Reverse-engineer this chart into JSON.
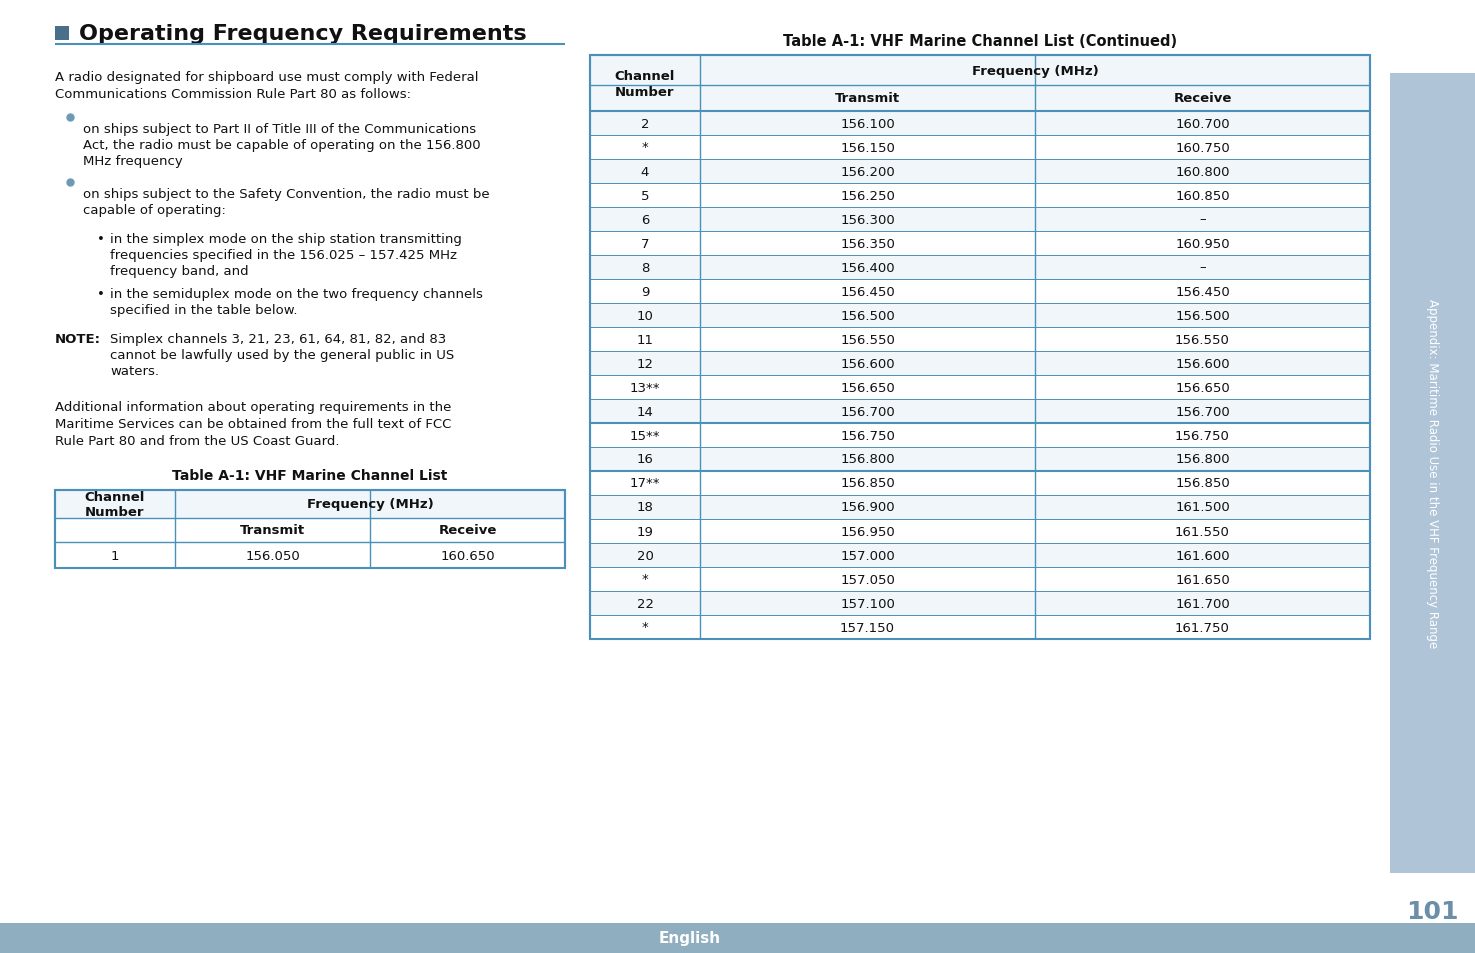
{
  "page_bg": "#ffffff",
  "sidebar_bg": "#b0c4d8",
  "sidebar_text": "Appendix: Maritime Radio Use in the VHF Frequency Range",
  "sidebar_text_color": "#ffffff",
  "page_num": "101",
  "page_num_color": "#6b8fa8",
  "footer_bg": "#8fafc0",
  "footer_text": "English",
  "footer_text_color": "#ffffff",
  "heading_icon_color": "#4a6f8a",
  "heading_text": "Operating Frequency Requirements",
  "heading_line_color": "#4a90b8",
  "body_text_left": "A radio designated for shipboard use must comply with Federal\nCommunications Commission Rule Part 80 as follows:",
  "bullet_color": "#6a9ab5",
  "bullet1": "on ships subject to Part II of Title III of the Communications\nAct, the radio must be capable of operating on the 156.800\nMHz frequency",
  "bullet2": "on ships subject to the Safety Convention, the radio must be\ncapable of operating:",
  "sub_bullet1": "in the simplex mode on the ship station transmitting\nfrequencies specified in the 156.025 – 157.425 MHz\nfrequency band, and",
  "sub_bullet2": "in the semiduplex mode on the two frequency channels\nspecified in the table below.",
  "note_label": "NOTE:",
  "note_text": "Simplex channels 3, 21, 23, 61, 64, 81, 82, and 83\ncannot be lawfully used by the general public in US\nwaters.",
  "additional_text": "Additional information about operating requirements in the\nMaritime Services can be obtained from the full text of FCC\nRule Part 80 and from the US Coast Guard.",
  "table1_title": "Table A-1: VHF Marine Channel List",
  "table1_header1": "Channel\nNumber",
  "table1_header2": "Frequency (MHz)",
  "table1_sub1": "Transmit",
  "table1_sub2": "Receive",
  "table1_data": [
    [
      "1",
      "156.050",
      "160.650"
    ]
  ],
  "table2_title": "Table A-1: VHF Marine Channel List (Continued)",
  "table2_data": [
    [
      "2",
      "156.100",
      "160.700"
    ],
    [
      "*",
      "156.150",
      "160.750"
    ],
    [
      "4",
      "156.200",
      "160.800"
    ],
    [
      "5",
      "156.250",
      "160.850"
    ],
    [
      "6",
      "156.300",
      "–"
    ],
    [
      "7",
      "156.350",
      "160.950"
    ],
    [
      "8",
      "156.400",
      "–"
    ],
    [
      "9",
      "156.450",
      "156.450"
    ],
    [
      "10",
      "156.500",
      "156.500"
    ],
    [
      "11",
      "156.550",
      "156.550"
    ],
    [
      "12",
      "156.600",
      "156.600"
    ],
    [
      "13**",
      "156.650",
      "156.650"
    ],
    [
      "14",
      "156.700",
      "156.700"
    ],
    [
      "15**",
      "156.750",
      "156.750"
    ],
    [
      "16",
      "156.800",
      "156.800"
    ],
    [
      "17**",
      "156.850",
      "156.850"
    ],
    [
      "18",
      "156.900",
      "161.500"
    ],
    [
      "19",
      "156.950",
      "161.550"
    ],
    [
      "20",
      "157.000",
      "161.600"
    ],
    [
      "*",
      "157.050",
      "161.650"
    ],
    [
      "22",
      "157.100",
      "161.700"
    ],
    [
      "*",
      "157.150",
      "161.750"
    ]
  ],
  "table_border_color": "#4a90b8",
  "table_header_bg": "#ffffff",
  "table_row_alt_bg": "#eef4f8",
  "table_text_color": "#222222",
  "thick_border_rows": [
    13,
    14
  ]
}
